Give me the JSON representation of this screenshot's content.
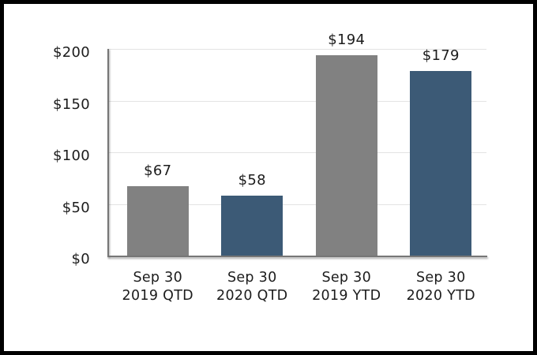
{
  "chart_data": {
    "type": "bar",
    "categories": [
      [
        "Sep 30",
        "2019 QTD"
      ],
      [
        "Sep 30",
        "2020 QTD"
      ],
      [
        "Sep 30",
        "2019 YTD"
      ],
      [
        "Sep 30",
        "2020 YTD"
      ]
    ],
    "values": [
      67,
      58,
      194,
      179
    ],
    "value_labels": [
      "$67",
      "$58",
      "$194",
      "$179"
    ],
    "bar_colors": [
      "#818181",
      "#3C5A76",
      "#818181",
      "#3C5A76"
    ],
    "yticks": [
      {
        "value": 0,
        "label": "$0"
      },
      {
        "value": 50,
        "label": "$50"
      },
      {
        "value": 100,
        "label": "$100"
      },
      {
        "value": 150,
        "label": "$150"
      },
      {
        "value": 200,
        "label": "$200"
      }
    ],
    "ylim": [
      0,
      200
    ],
    "grid": true,
    "legend_position": "none",
    "xlabel": "",
    "ylabel": ""
  },
  "colors": {
    "bar_gray": "#818181",
    "bar_blue": "#3C5A76",
    "gridline": "#E3E3E3",
    "axis_line": "#767676",
    "text": "#1C1C1C",
    "frame_border": "#000000",
    "background": "#FFFFFF"
  }
}
